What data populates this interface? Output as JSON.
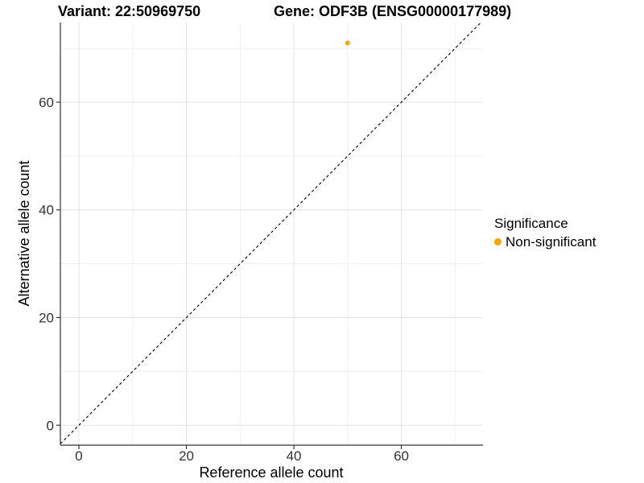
{
  "chart_data": {
    "type": "scatter",
    "title_left": "Variant: 22:50969750",
    "title_right": "Gene: ODF3B (ENSG00000177989)",
    "xlabel": "Reference allele count",
    "ylabel": "Alternative allele count",
    "points": [
      {
        "x": 50,
        "y": 71,
        "series": "Non-significant"
      }
    ],
    "x_ticks": [
      0,
      20,
      40,
      60
    ],
    "y_ticks": [
      0,
      20,
      40,
      60
    ],
    "x_minor_gridlines": [
      10,
      30,
      50,
      70
    ],
    "y_minor_gridlines": [
      10,
      30,
      50,
      70
    ],
    "xlim": [
      -3.45,
      75.2
    ],
    "ylim": [
      -3.7,
      74.8
    ],
    "grid": "major+minor",
    "identity_line": {
      "style": "dashed",
      "note": "y = x reference line"
    },
    "legend_position": "right",
    "legend_title": "Significance",
    "legend_items": [
      {
        "label": "Non-significant",
        "color": "#FFA500"
      }
    ]
  },
  "colors": {
    "background": "#FFFFFF",
    "grid_major": "#E3E3E3",
    "grid_minor": "#F0F0F0",
    "axis_line": "#333333",
    "tick_mark": "#333333",
    "tick_text": "#333333",
    "identity_line": "#000000",
    "point": "#FFA500"
  }
}
